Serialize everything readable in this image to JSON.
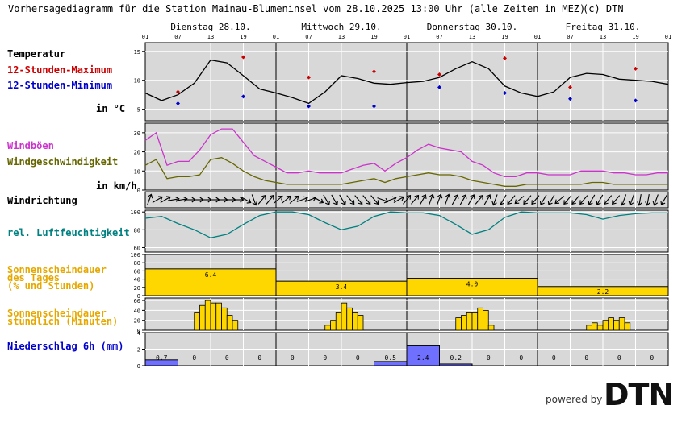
{
  "header": {
    "title": "Vorhersagediagramm für die Station Mainau-Blumeninsel vom 28.10.2025 13:00 Uhr (alle Zeiten in MEZ)",
    "copyright": "(c) DTN"
  },
  "labels": {
    "temperature": "Temperatur",
    "max12": "12-Stunden-Maximum",
    "min12": "12-Stunden-Minimum",
    "temp_unit": "in °C",
    "gusts": "Windböen",
    "windspeed": "Windgeschwindigkeit",
    "wind_unit": "in km/h",
    "winddir": "Windrichtung",
    "humidity": "rel. Luftfeuchtigkeit",
    "sun_daily_1": "Sonnenscheindauer",
    "sun_daily_2": "des Tages",
    "sun_daily_3": "(% und Stunden)",
    "sun_hourly_1": "Sonnenscheindauer",
    "sun_hourly_2": "stündlich (Minuten)",
    "precip": "Niederschlag 6h (mm)"
  },
  "branding": {
    "powered_by": "powered by",
    "logo": "DTN"
  },
  "colors": {
    "panel_bg": "#d8d8d8",
    "temperature": "#000000",
    "max": "#cc0000",
    "min": "#0000cc",
    "gusts": "#cc33cc",
    "windspeed": "#666600",
    "humidity": "#008080",
    "sun_label": "#e6a800",
    "sun_fill": "#ffd700",
    "precip_label": "#0000cc",
    "precip_fill": "#7070ff"
  },
  "chart_data": {
    "type": "line",
    "days": [
      "Dienstag 28.10.",
      "Mittwoch 29.10.",
      "Donnerstag 30.10.",
      "Freitag 31.10."
    ],
    "hour_ticks": [
      "01",
      "07",
      "13",
      "19",
      "01",
      "07",
      "13",
      "19",
      "01",
      "07",
      "13",
      "19",
      "01",
      "07",
      "13",
      "19",
      "01"
    ],
    "temperature": {
      "yticks": [
        "15",
        "10",
        "5"
      ],
      "ylim": [
        3,
        16.5
      ],
      "x_hours": [
        0,
        3,
        6,
        9,
        12,
        15,
        18,
        21,
        24,
        27,
        30,
        33,
        36,
        39,
        42,
        45,
        48,
        51,
        54,
        57,
        60,
        63,
        66,
        69,
        72,
        75,
        78,
        81,
        84,
        87,
        90,
        93,
        96
      ],
      "values": [
        7.8,
        6.5,
        7.5,
        9.5,
        13.5,
        13,
        10.8,
        8.5,
        7.8,
        7,
        6,
        8,
        10.8,
        10.3,
        9.5,
        9.3,
        9.6,
        9.8,
        10.5,
        12,
        13.2,
        12,
        9,
        7.8,
        7.2,
        8,
        10.5,
        11.2,
        11,
        10.2,
        10,
        9.8,
        9.3
      ],
      "max_hours": [
        6,
        18,
        30,
        42,
        54,
        66,
        78,
        90
      ],
      "max_values": [
        8,
        14,
        10.5,
        11.5,
        11,
        13.8,
        8.8,
        12
      ],
      "min_hours": [
        6,
        18,
        30,
        42,
        54,
        66,
        78,
        90
      ],
      "min_values": [
        6,
        7.2,
        5.5,
        5.5,
        8.8,
        7.8,
        6.8,
        6.5
      ]
    },
    "wind": {
      "yticks": [
        "30",
        "20",
        "10",
        "0"
      ],
      "ylim": [
        0,
        35
      ],
      "x_hours": [
        0,
        2,
        4,
        6,
        8,
        10,
        12,
        14,
        16,
        18,
        20,
        22,
        24,
        26,
        28,
        30,
        32,
        34,
        36,
        38,
        40,
        42,
        44,
        46,
        48,
        50,
        52,
        54,
        56,
        58,
        60,
        62,
        64,
        66,
        68,
        70,
        72,
        74,
        76,
        78,
        80,
        82,
        84,
        86,
        88,
        90,
        92,
        94,
        96
      ],
      "gusts": [
        26,
        30,
        13,
        15,
        15,
        21,
        29,
        32,
        32,
        25,
        18,
        15,
        12,
        9,
        9,
        10,
        9,
        9,
        9,
        11,
        13,
        14,
        10,
        14,
        17,
        21,
        24,
        22,
        21,
        20,
        15,
        13,
        9,
        7,
        7,
        9,
        9,
        8,
        8,
        8,
        10,
        10,
        10,
        9,
        9,
        8,
        8,
        9,
        9
      ],
      "speed": [
        13,
        16,
        6,
        7,
        7,
        8,
        16,
        17,
        14,
        10,
        7,
        5,
        4,
        3,
        3,
        3,
        3,
        3,
        3,
        4,
        5,
        6,
        4,
        6,
        7,
        8,
        9,
        8,
        8,
        7,
        5,
        4,
        3,
        2,
        2,
        3,
        3,
        3,
        3,
        3,
        3,
        4,
        4,
        3,
        3,
        3,
        3,
        3,
        3
      ]
    },
    "wind_direction_deg": [
      20,
      60,
      60,
      80,
      80,
      90,
      90,
      90,
      90,
      90,
      90,
      90,
      120,
      160,
      40,
      40,
      50,
      50,
      50,
      70,
      70,
      120,
      150,
      150,
      150,
      140,
      140,
      140,
      140,
      110,
      70,
      60,
      40,
      40,
      30,
      20,
      20,
      20,
      30,
      30,
      30,
      40,
      30,
      200,
      210,
      220,
      230,
      220,
      220,
      210,
      210,
      230,
      220,
      220,
      220,
      210,
      210,
      220,
      220,
      200,
      200,
      190,
      190,
      200,
      210
    ],
    "humidity": {
      "yticks": [
        "100",
        "80",
        "60"
      ],
      "ylim": [
        55,
        102
      ],
      "x_hours": [
        0,
        3,
        6,
        9,
        12,
        15,
        18,
        21,
        24,
        27,
        30,
        33,
        36,
        39,
        42,
        45,
        48,
        51,
        54,
        57,
        60,
        63,
        66,
        69,
        72,
        75,
        78,
        81,
        84,
        87,
        90,
        93,
        96
      ],
      "values": [
        93,
        95,
        87,
        80,
        71,
        75,
        86,
        96,
        100,
        100,
        97,
        88,
        80,
        84,
        95,
        100,
        99,
        99,
        96,
        86,
        75,
        80,
        94,
        100,
        99,
        99,
        99,
        97,
        92,
        96,
        98,
        99,
        99
      ]
    },
    "sun_daily": {
      "yticks": [
        "100",
        "80",
        "60",
        "40",
        "20",
        "0"
      ],
      "ylim": [
        0,
        100
      ],
      "percent": [
        65,
        35,
        42,
        22
      ],
      "hours_labels": [
        "6.4",
        "3.4",
        "4.0",
        "2.2"
      ]
    },
    "sun_hourly": {
      "yticks": [
        "60",
        "40",
        "20",
        "0"
      ],
      "ylim": [
        0,
        65
      ],
      "start_hours": [
        13,
        37,
        61,
        85
      ],
      "minutes": [
        [
          0,
          0,
          35,
          50,
          60,
          55,
          55,
          45,
          30,
          20,
          0,
          0
        ],
        [
          0,
          0,
          10,
          20,
          35,
          55,
          45,
          35,
          30,
          0,
          0,
          0
        ],
        [
          0,
          0,
          25,
          30,
          35,
          35,
          45,
          40,
          10,
          0,
          0,
          0
        ],
        [
          0,
          0,
          10,
          15,
          10,
          20,
          25,
          20,
          25,
          15,
          0,
          0
        ]
      ]
    },
    "precip_6h": {
      "yticks": [
        "4",
        "2",
        "0"
      ],
      "ylim": [
        0,
        4
      ],
      "values": [
        0.7,
        0,
        0,
        0,
        0,
        0,
        0,
        0.5,
        2.4,
        0.2,
        0,
        0,
        0,
        0,
        0,
        0
      ],
      "labels": [
        "0.7",
        "0",
        "0",
        "0",
        "0",
        "0",
        "0",
        "0.5",
        "2.4",
        "0.2",
        "0",
        "0",
        "0",
        "0",
        "0",
        "0"
      ]
    }
  }
}
